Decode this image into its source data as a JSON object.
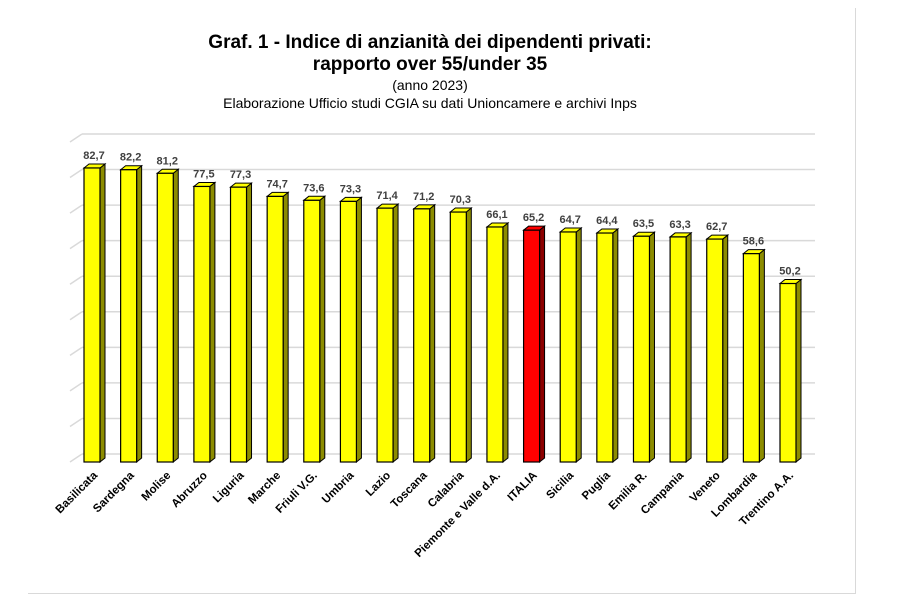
{
  "chart_data": {
    "type": "bar",
    "title": "Graf. 1 - Indice di anzianità dei dipendenti privati:",
    "title_line2": "rapporto over 55/under 35",
    "subtitle": "(anno 2023)",
    "source": "Elaborazione Ufficio studi CGIA  su dati Unioncamere e archivi Inps",
    "categories": [
      "Basilicata",
      "Sardegna",
      "Molise",
      "Abruzzo",
      "Liguria",
      "Marche",
      "Friuli V.G.",
      "Umbria",
      "Lazio",
      "Toscana",
      "Calabria",
      "Piemonte e Valle d.A.",
      "ITALIA",
      "Sicilia",
      "Puglia",
      "Emilia R.",
      "Campania",
      "Veneto",
      "Lombardia",
      "Trentino A.A."
    ],
    "values": [
      82.7,
      82.2,
      81.2,
      77.5,
      77.3,
      74.7,
      73.6,
      73.3,
      71.4,
      71.2,
      70.3,
      66.1,
      65.2,
      64.7,
      64.4,
      63.5,
      63.3,
      62.7,
      58.6,
      50.2
    ],
    "data_labels": [
      "82,7",
      "82,2",
      "81,2",
      "77,5",
      "77,3",
      "74,7",
      "73,6",
      "73,3",
      "71,4",
      "71,2",
      "70,3",
      "66,1",
      "65,2",
      "64,7",
      "64,4",
      "63,5",
      "63,3",
      "62,7",
      "58,6",
      "50,2"
    ],
    "highlight": "ITALIA",
    "ylim": [
      0,
      90
    ],
    "grid": true,
    "style": "3d-bar",
    "colors": {
      "bar": "#ffff00",
      "bar_side": "#8c8c00",
      "highlight": "#ff0000",
      "highlight_side": "#8c0000",
      "grid": "#d9d9d9",
      "label": "#404040"
    }
  }
}
